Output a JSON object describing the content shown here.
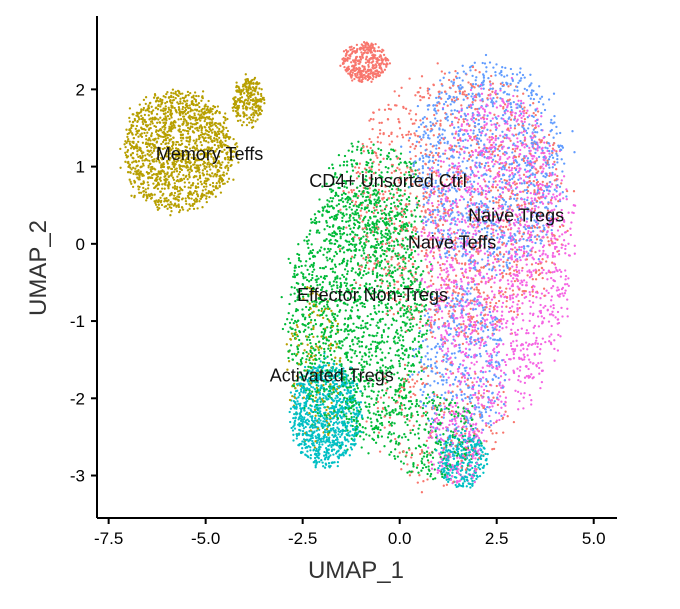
{
  "chart_data": {
    "type": "scatter",
    "title": "",
    "xlabel": "UMAP_1",
    "ylabel": "UMAP_2",
    "xlim": [
      -7.8,
      5.6
    ],
    "ylim": [
      -3.55,
      2.95
    ],
    "x_ticks": [
      -7.5,
      -5.0,
      -2.5,
      0.0,
      2.5,
      5.0
    ],
    "x_tick_labels": [
      "-7.5",
      "-5.0",
      "-2.5",
      "0.0",
      "2.5",
      "5.0"
    ],
    "y_ticks": [
      -3,
      -2,
      -1,
      0,
      1,
      2
    ],
    "y_tick_labels": [
      "-3",
      "-2",
      "-1",
      "0",
      "1",
      "2"
    ],
    "grid": false,
    "legend": "none",
    "cluster_labels": [
      {
        "text": "Memory Teffs",
        "x": -4.9,
        "y": 1.15
      },
      {
        "text": "CD4+ Unsorted Ctrl",
        "x": -0.3,
        "y": 0.8
      },
      {
        "text": "Naive Tregs",
        "x": 3.0,
        "y": 0.35
      },
      {
        "text": "Naive Teffs",
        "x": 1.35,
        "y": 0.0
      },
      {
        "text": "Effector Non-Tregs",
        "x": -0.7,
        "y": -0.68
      },
      {
        "text": "Activated Tregs",
        "x": -1.75,
        "y": -1.72
      }
    ],
    "series": [
      {
        "color": "#B79F00",
        "regions": [
          {
            "cx": -5.7,
            "cy": 1.2,
            "rx": 1.6,
            "ry": 0.85,
            "n": 1500
          },
          {
            "cx": -3.9,
            "cy": 1.85,
            "rx": 0.45,
            "ry": 0.35,
            "n": 250
          },
          {
            "cx": -2.2,
            "cy": -1.6,
            "rx": 0.8,
            "ry": 1.2,
            "n": 150
          }
        ]
      },
      {
        "color": "#F8766D",
        "regions": [
          {
            "cx": -0.9,
            "cy": 2.35,
            "rx": 0.65,
            "ry": 0.28,
            "n": 350
          },
          {
            "cx": 1.5,
            "cy": 0.5,
            "rx": 3.1,
            "ry": 1.9,
            "n": 1200
          },
          {
            "cx": 1.0,
            "cy": -2.3,
            "rx": 2.0,
            "ry": 0.9,
            "n": 200
          }
        ]
      },
      {
        "color": "#00BA38",
        "regions": [
          {
            "cx": -1.1,
            "cy": -0.9,
            "rx": 2.0,
            "ry": 1.8,
            "n": 1700
          },
          {
            "cx": -0.7,
            "cy": 0.6,
            "rx": 1.4,
            "ry": 0.8,
            "n": 350
          },
          {
            "cx": 0.9,
            "cy": -2.5,
            "rx": 1.4,
            "ry": 0.6,
            "n": 250
          }
        ]
      },
      {
        "color": "#00BFC4",
        "regions": [
          {
            "cx": -1.9,
            "cy": -2.2,
            "rx": 1.0,
            "ry": 0.75,
            "n": 900
          },
          {
            "cx": 1.6,
            "cy": -2.8,
            "rx": 0.7,
            "ry": 0.4,
            "n": 300
          }
        ]
      },
      {
        "color": "#619CFF",
        "regions": [
          {
            "cx": 2.3,
            "cy": 1.0,
            "rx": 2.2,
            "ry": 1.5,
            "n": 1100
          },
          {
            "cx": 1.6,
            "cy": -1.6,
            "rx": 1.3,
            "ry": 1.2,
            "n": 400
          }
        ]
      },
      {
        "color": "#F564E3",
        "regions": [
          {
            "cx": 2.5,
            "cy": -0.1,
            "rx": 2.1,
            "ry": 2.3,
            "n": 1600
          },
          {
            "cx": 1.4,
            "cy": -2.6,
            "rx": 0.8,
            "ry": 0.6,
            "n": 200
          }
        ]
      }
    ]
  }
}
